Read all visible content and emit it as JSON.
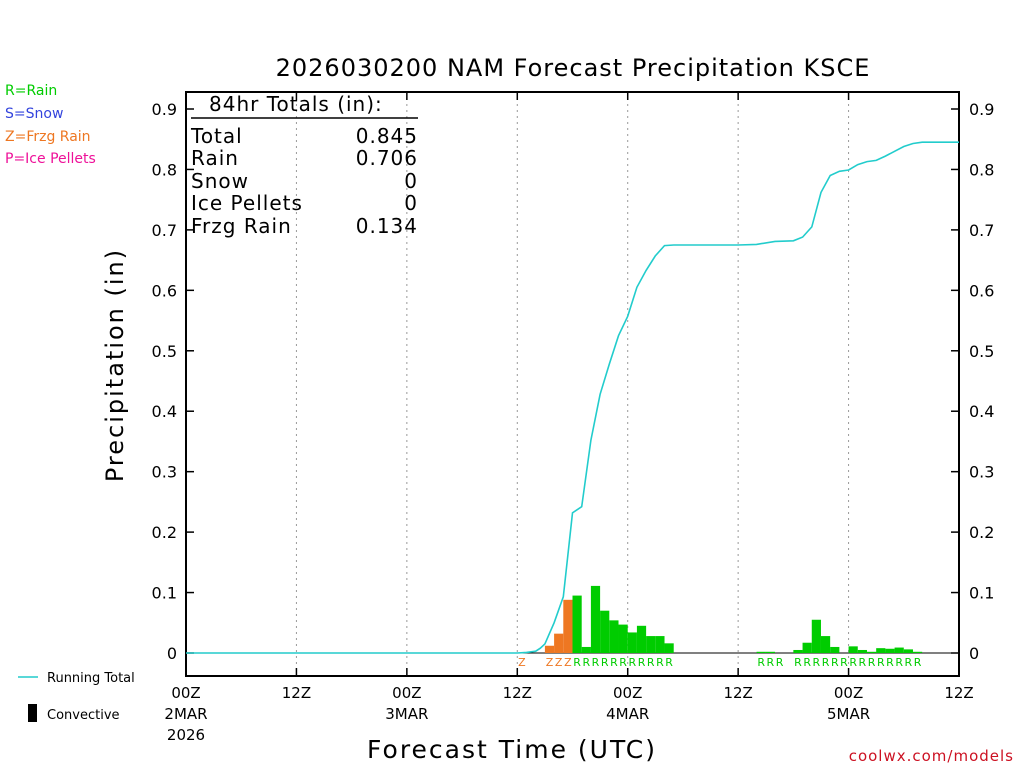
{
  "chart_data": {
    "type": "bar",
    "title": "2026030200 NAM Forecast Precipitation KSCE",
    "ylabel": "Precipitation (in)",
    "xlabel": "Forecast Time (UTC)",
    "ylim": [
      0,
      0.9
    ],
    "xlim_hours": [
      0,
      84
    ],
    "y_ticks": [
      0,
      0.1,
      0.2,
      0.3,
      0.4,
      0.5,
      0.6,
      0.7,
      0.8,
      0.9
    ],
    "y_tick_labels": [
      "0",
      "0.1",
      "0.2",
      "0.3",
      "0.4",
      "0.5",
      "0.6",
      "0.7",
      "0.8",
      "0.9"
    ],
    "x_ticks": [
      {
        "hour": 0,
        "lines": [
          "00Z",
          "2MAR",
          "2026"
        ]
      },
      {
        "hour": 12,
        "lines": [
          "12Z"
        ]
      },
      {
        "hour": 24,
        "lines": [
          "00Z",
          "3MAR"
        ]
      },
      {
        "hour": 36,
        "lines": [
          "12Z"
        ]
      },
      {
        "hour": 48,
        "lines": [
          "00Z",
          "4MAR"
        ]
      },
      {
        "hour": 60,
        "lines": [
          "12Z"
        ]
      },
      {
        "hour": 72,
        "lines": [
          "00Z",
          "5MAR"
        ]
      },
      {
        "hour": 84,
        "lines": [
          "12Z"
        ]
      }
    ],
    "grid": "vertical dotted at 12-hour intervals",
    "legend": [
      {
        "label": "R=Rain",
        "color": "#00cc00"
      },
      {
        "label": "S=Snow",
        "color": "#3344dd"
      },
      {
        "label": "Z=Frzg Rain",
        "color": "#ee7722"
      },
      {
        "label": "P=Ice Pellets",
        "color": "#ee1199"
      }
    ],
    "bottom_legend": [
      {
        "label": "Running Total",
        "color": "#22cccc"
      },
      {
        "label": "Convective",
        "color": "#000000"
      }
    ],
    "totals": {
      "header": "84hr Totals (in):",
      "rows": [
        {
          "label": "Total",
          "value": "0.845"
        },
        {
          "label": "Rain",
          "value": "0.706"
        },
        {
          "label": "Snow",
          "value": "0"
        },
        {
          "label": "Ice Pellets",
          "value": "0"
        },
        {
          "label": "Frzg Rain",
          "value": "0.134"
        }
      ]
    },
    "bar_series": [
      {
        "name": "Frzg Rain",
        "color": "#ee7722",
        "bars": [
          {
            "hour": 40,
            "value": 0.012
          },
          {
            "hour": 41,
            "value": 0.032
          },
          {
            "hour": 42,
            "value": 0.088
          }
        ]
      },
      {
        "name": "Rain",
        "color": "#00cc00",
        "bars": [
          {
            "hour": 43,
            "value": 0.095
          },
          {
            "hour": 44,
            "value": 0.01
          },
          {
            "hour": 45,
            "value": 0.111
          },
          {
            "hour": 46,
            "value": 0.07
          },
          {
            "hour": 47,
            "value": 0.054
          },
          {
            "hour": 48,
            "value": 0.047
          },
          {
            "hour": 49,
            "value": 0.034
          },
          {
            "hour": 50,
            "value": 0.045
          },
          {
            "hour": 51,
            "value": 0.028
          },
          {
            "hour": 52,
            "value": 0.028
          },
          {
            "hour": 53,
            "value": 0.016
          },
          {
            "hour": 63,
            "value": 0.002
          },
          {
            "hour": 64,
            "value": 0.002
          },
          {
            "hour": 67,
            "value": 0.005
          },
          {
            "hour": 68,
            "value": 0.017
          },
          {
            "hour": 69,
            "value": 0.055
          },
          {
            "hour": 70,
            "value": 0.028
          },
          {
            "hour": 71,
            "value": 0.01
          },
          {
            "hour": 73,
            "value": 0.011
          },
          {
            "hour": 74,
            "value": 0.005
          },
          {
            "hour": 75,
            "value": 0.002
          },
          {
            "hour": 76,
            "value": 0.008
          },
          {
            "hour": 77,
            "value": 0.007
          },
          {
            "hour": 78,
            "value": 0.009
          },
          {
            "hour": 79,
            "value": 0.006
          },
          {
            "hour": 80,
            "value": 0.002
          }
        ]
      }
    ],
    "running_total": {
      "name": "Running Total",
      "color": "#22cccc",
      "x": [
        0,
        36,
        37,
        38,
        38.5,
        39,
        40,
        41,
        42,
        43,
        44,
        45,
        46,
        47,
        48,
        49,
        50,
        51,
        52,
        53,
        54,
        56,
        60,
        62,
        64,
        66,
        67,
        68,
        69,
        70,
        71,
        72,
        73,
        74,
        75,
        76,
        77,
        78,
        79,
        80,
        82,
        84
      ],
      "y": [
        0,
        0,
        0.001,
        0.003,
        0.008,
        0.015,
        0.05,
        0.093,
        0.232,
        0.242,
        0.352,
        0.428,
        0.478,
        0.525,
        0.557,
        0.605,
        0.633,
        0.657,
        0.674,
        0.675,
        0.675,
        0.675,
        0.675,
        0.676,
        0.681,
        0.682,
        0.688,
        0.705,
        0.762,
        0.79,
        0.797,
        0.799,
        0.808,
        0.813,
        0.815,
        0.822,
        0.83,
        0.838,
        0.843,
        0.845,
        0.845,
        0.845
      ]
    },
    "ptype_labels": [
      {
        "hour": 37,
        "text": "Z",
        "color": "#ee7722"
      },
      {
        "hour": 40,
        "text": "Z",
        "color": "#ee7722"
      },
      {
        "hour": 41,
        "text": "Z",
        "color": "#ee7722"
      },
      {
        "hour": 42,
        "text": "Z",
        "color": "#ee7722"
      },
      {
        "hour": 43,
        "text": "R",
        "color": "#00cc00"
      },
      {
        "hour": 44,
        "text": "R",
        "color": "#00cc00"
      },
      {
        "hour": 45,
        "text": "R",
        "color": "#00cc00"
      },
      {
        "hour": 46,
        "text": "R",
        "color": "#00cc00"
      },
      {
        "hour": 47,
        "text": "R",
        "color": "#00cc00"
      },
      {
        "hour": 48,
        "text": "R",
        "color": "#00cc00"
      },
      {
        "hour": 49,
        "text": "R",
        "color": "#00cc00"
      },
      {
        "hour": 50,
        "text": "R",
        "color": "#00cc00"
      },
      {
        "hour": 51,
        "text": "R",
        "color": "#00cc00"
      },
      {
        "hour": 52,
        "text": "R",
        "color": "#00cc00"
      },
      {
        "hour": 53,
        "text": "R",
        "color": "#00cc00"
      },
      {
        "hour": 63,
        "text": "R",
        "color": "#00cc00"
      },
      {
        "hour": 64,
        "text": "R",
        "color": "#00cc00"
      },
      {
        "hour": 65,
        "text": "R",
        "color": "#00cc00"
      },
      {
        "hour": 67,
        "text": "R",
        "color": "#00cc00"
      },
      {
        "hour": 68,
        "text": "R",
        "color": "#00cc00"
      },
      {
        "hour": 69,
        "text": "R",
        "color": "#00cc00"
      },
      {
        "hour": 70,
        "text": "R",
        "color": "#00cc00"
      },
      {
        "hour": 71,
        "text": "R",
        "color": "#00cc00"
      },
      {
        "hour": 72,
        "text": "R",
        "color": "#00cc00"
      },
      {
        "hour": 73,
        "text": "R",
        "color": "#00cc00"
      },
      {
        "hour": 74,
        "text": "R",
        "color": "#00cc00"
      },
      {
        "hour": 75,
        "text": "R",
        "color": "#00cc00"
      },
      {
        "hour": 76,
        "text": "R",
        "color": "#00cc00"
      },
      {
        "hour": 77,
        "text": "R",
        "color": "#00cc00"
      },
      {
        "hour": 78,
        "text": "R",
        "color": "#00cc00"
      },
      {
        "hour": 79,
        "text": "R",
        "color": "#00cc00"
      },
      {
        "hour": 80,
        "text": "R",
        "color": "#00cc00"
      }
    ],
    "credit": "coolwx.com/models"
  }
}
